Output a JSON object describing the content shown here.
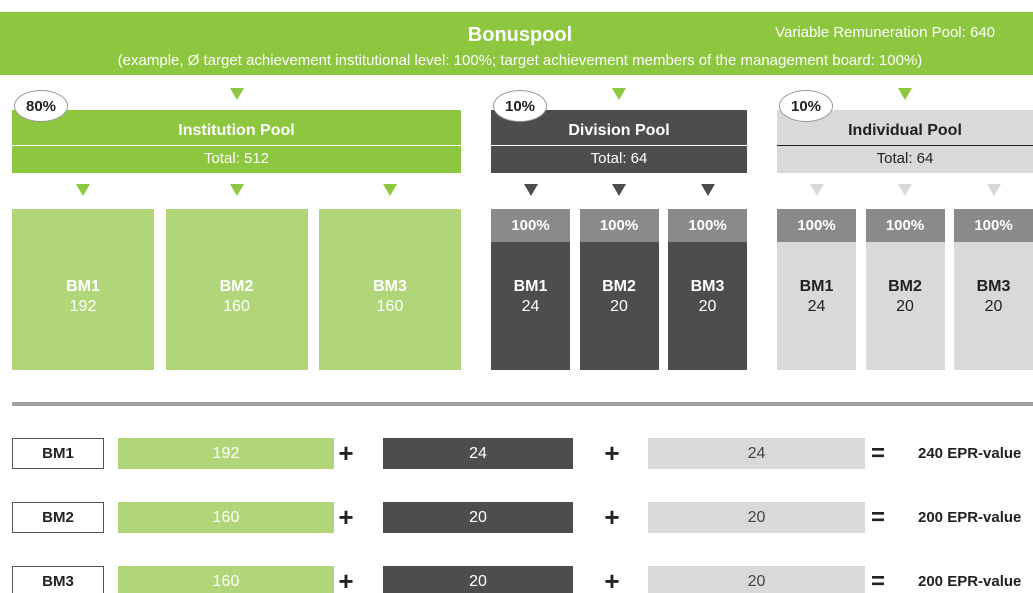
{
  "header": {
    "title": "Bonuspool",
    "pool_label": "Variable Remuneration Pool: 640",
    "subtitle": "(example, Ø target achievement institutional level: 100%; target achievement members of the management board: 100%)"
  },
  "pools": [
    {
      "share": "80%",
      "name": "Institution Pool",
      "total": "Total: 512",
      "members": [
        {
          "name": "BM1",
          "value": "192"
        },
        {
          "name": "BM2",
          "value": "160"
        },
        {
          "name": "BM3",
          "value": "160"
        }
      ]
    },
    {
      "share": "10%",
      "name": "Division Pool",
      "total": "Total: 64",
      "members": [
        {
          "share": "100%",
          "name": "BM1",
          "value": "24"
        },
        {
          "share": "100%",
          "name": "BM2",
          "value": "20"
        },
        {
          "share": "100%",
          "name": "BM3",
          "value": "20"
        }
      ]
    },
    {
      "share": "10%",
      "name": "Individual Pool",
      "total": "Total: 64",
      "members": [
        {
          "share": "100%",
          "name": "BM1",
          "value": "24"
        },
        {
          "share": "100%",
          "name": "BM2",
          "value": "20"
        },
        {
          "share": "100%",
          "name": "BM3",
          "value": "20"
        }
      ]
    }
  ],
  "summary": {
    "plus": "+",
    "equals": "=",
    "rows": [
      {
        "name": "BM1",
        "values": [
          "192",
          "24",
          "24"
        ],
        "result": "240 EPR-value"
      },
      {
        "name": "BM2",
        "values": [
          "160",
          "20",
          "20"
        ],
        "result": "200 EPR-value"
      },
      {
        "name": "BM3",
        "values": [
          "160",
          "20",
          "20"
        ],
        "result": "200 EPR-value"
      }
    ]
  }
}
